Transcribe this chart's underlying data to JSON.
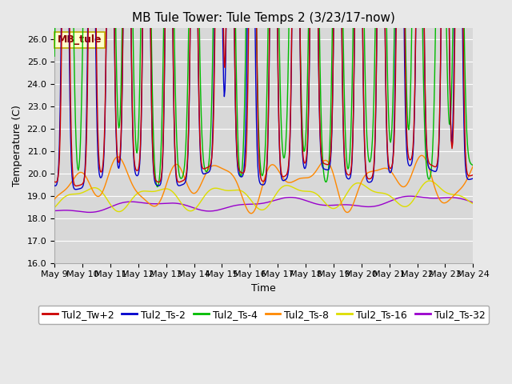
{
  "title": "MB Tule Tower: Tule Temps 2 (3/23/17-now)",
  "xlabel": "Time",
  "ylabel": "Temperature (C)",
  "ylim": [
    16.0,
    26.5
  ],
  "yticks": [
    16.0,
    17.0,
    18.0,
    19.0,
    20.0,
    21.0,
    22.0,
    23.0,
    24.0,
    25.0,
    26.0
  ],
  "xtick_labels": [
    "May 9",
    "May 10",
    "May 11",
    "May 12",
    "May 13",
    "May 14",
    "May 15",
    "May 16",
    "May 17",
    "May 18",
    "May 19",
    "May 20",
    "May 21",
    "May 22",
    "May 23",
    "May 24"
  ],
  "series_names": [
    "Tul2_Tw+2",
    "Tul2_Ts-2",
    "Tul2_Ts-4",
    "Tul2_Ts-8",
    "Tul2_Ts-16",
    "Tul2_Ts-32"
  ],
  "series_colors": [
    "#cc0000",
    "#0000cc",
    "#00bb00",
    "#ff8800",
    "#dddd00",
    "#9900cc"
  ],
  "background_color": "#e8e8e8",
  "plot_bg_color": "#d8d8d8",
  "annotation_text": "MB_tule",
  "annotation_color": "#8B0000",
  "annotation_bg": "#ffffcc",
  "annotation_border": "#bbaa00",
  "title_fontsize": 11,
  "axis_fontsize": 9,
  "tick_fontsize": 8,
  "legend_fontsize": 9,
  "linewidth": 1.0
}
